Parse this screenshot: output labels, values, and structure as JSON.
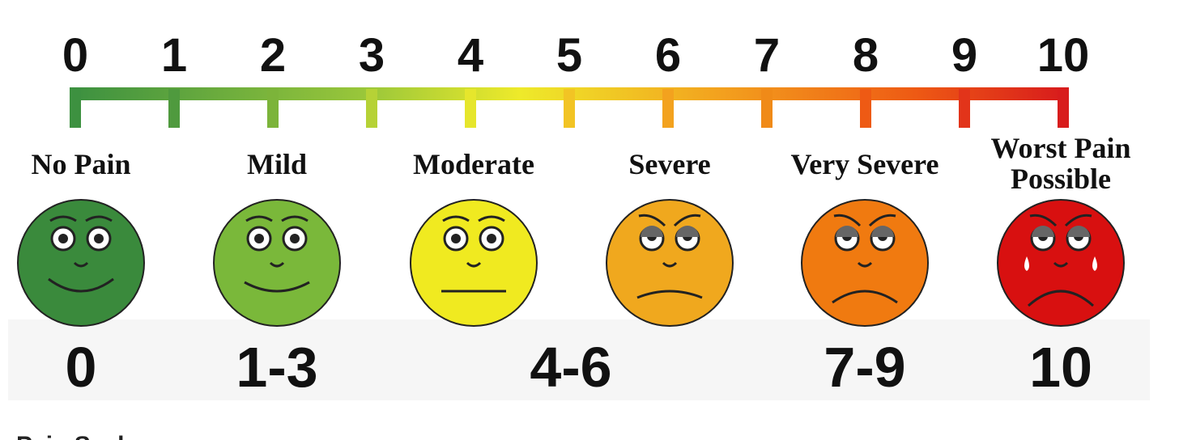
{
  "scale": {
    "ticks": [
      0,
      1,
      2,
      3,
      4,
      5,
      6,
      7,
      8,
      9,
      10
    ]
  },
  "faces": [
    {
      "label": [
        "No Pain"
      ]
    },
    {
      "label": [
        "Mild"
      ]
    },
    {
      "label": [
        "Moderate"
      ]
    },
    {
      "label": [
        "Severe"
      ]
    },
    {
      "label": [
        "Very Severe"
      ]
    },
    {
      "label": [
        "Worst Pain",
        "Possible"
      ]
    }
  ],
  "ranges": [
    "0",
    "1-3",
    "4-6",
    "7-9",
    "10"
  ],
  "caption": "Pain Scale"
}
